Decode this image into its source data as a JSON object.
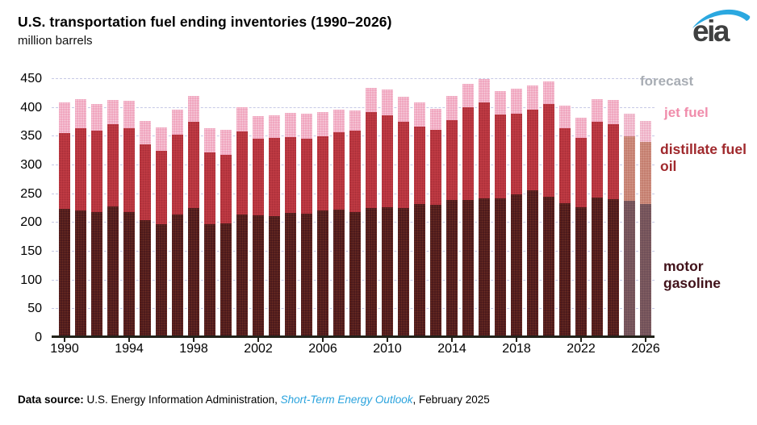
{
  "header": {
    "title": "U.S. transportation fuel ending inventories (1990–2026)",
    "subtitle": "million barrels"
  },
  "logo": {
    "text": "eia",
    "swoosh_color": "#2ba8e0",
    "icon": "eia-swoosh-icon"
  },
  "legend": {
    "forecast": "forecast",
    "jet_fuel": "jet fuel",
    "distillate": "distillate fuel oil",
    "motor_gasoline": "motor gasoline"
  },
  "footer": {
    "label": "Data source: ",
    "text1": "U.S. Energy Information Administration, ",
    "link": "Short-Term Energy Outlook",
    "text2": ", February 2025"
  },
  "chart_data": {
    "type": "bar",
    "stacked": true,
    "title": "U.S. transportation fuel ending inventories (1990–2026)",
    "ylabel": "million barrels",
    "ylim": [
      0,
      450
    ],
    "ytick_step": 50,
    "yticks": [
      0,
      50,
      100,
      150,
      200,
      250,
      300,
      350,
      400,
      450
    ],
    "xticks": [
      1990,
      1994,
      1998,
      2002,
      2006,
      2010,
      2014,
      2018,
      2022,
      2026
    ],
    "grid": "dashed horizontal",
    "legend_position": "right",
    "forecast_start_year": 2025,
    "categories": [
      1990,
      1991,
      1992,
      1993,
      1994,
      1995,
      1996,
      1997,
      1998,
      1999,
      2000,
      2001,
      2002,
      2003,
      2004,
      2005,
      2006,
      2007,
      2008,
      2009,
      2010,
      2011,
      2012,
      2013,
      2014,
      2015,
      2016,
      2017,
      2018,
      2019,
      2020,
      2021,
      2022,
      2023,
      2024,
      2025,
      2026
    ],
    "series": [
      {
        "name": "motor gasoline",
        "color": "#49181b",
        "forecast_color": "#6f4f58",
        "values": [
          220,
          218,
          215,
          225,
          214,
          201,
          194,
          211,
          221,
          193,
          195,
          211,
          209,
          207,
          213,
          212,
          217,
          219,
          215,
          222,
          223,
          222,
          229,
          227,
          235,
          236,
          239,
          238,
          246,
          253,
          241,
          230,
          223,
          240,
          237,
          234,
          228
        ]
      },
      {
        "name": "distillate fuel oil",
        "color": "#c13b44",
        "forecast_color": "#c37b6c",
        "values": [
          132,
          143,
          141,
          142,
          146,
          131,
          127,
          138,
          150,
          125,
          119,
          144,
          133,
          136,
          132,
          130,
          130,
          135,
          141,
          166,
          160,
          150,
          134,
          130,
          139,
          161,
          166,
          146,
          140,
          139,
          162,
          131,
          120,
          131,
          131,
          113,
          108
        ]
      },
      {
        "name": "jet fuel",
        "color": "#efa2bc",
        "forecast_color": "#edacc3",
        "values": [
          53,
          50,
          46,
          43,
          48,
          41,
          41,
          44,
          45,
          42,
          44,
          42,
          39,
          40,
          42,
          43,
          41,
          39,
          35,
          43,
          44,
          43,
          42,
          37,
          43,
          40,
          41,
          41,
          43,
          43,
          39,
          38,
          36,
          40,
          41,
          38,
          37
        ]
      }
    ]
  }
}
